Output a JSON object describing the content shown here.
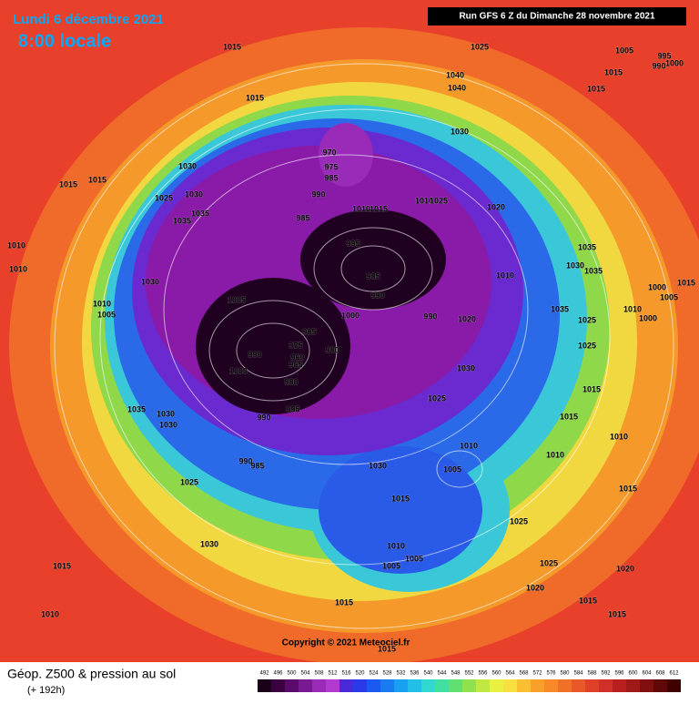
{
  "header": {
    "date": "Lundi 6 décembre 2021",
    "time": "8:00 locale",
    "run": "Run GFS 6 Z du Dimanche 28 novembre 2021"
  },
  "isobar_labels": [
    1015,
    1025,
    1005,
    1015,
    1015,
    995,
    990,
    1000,
    1040,
    1015,
    1040,
    1030,
    1030,
    1015,
    1015,
    1025,
    1030,
    1035,
    1035,
    970,
    975,
    985,
    990,
    985,
    1010,
    1015,
    1010,
    1025,
    1020,
    995,
    985,
    990,
    1010,
    1010,
    1030,
    1010,
    1035,
    1030,
    1035,
    1000,
    1005,
    1015,
    1010,
    1000,
    1035,
    1025,
    1025,
    1010,
    1005,
    1005,
    1000,
    990,
    1020,
    985,
    980,
    975,
    960,
    965,
    990,
    1000,
    980,
    1030,
    1025,
    1015,
    1015,
    1035,
    1030,
    1030,
    995,
    990,
    1030,
    1010,
    1005,
    1010,
    1010,
    1015,
    990,
    985,
    1025,
    1015,
    1025,
    1030,
    1010,
    1005,
    1005,
    1025,
    1020,
    1020,
    1015,
    1010,
    1015,
    1015,
    1015,
    1015
  ],
  "copyright": "Copyright © 2021 Meteociel.fr",
  "footer": {
    "title": "Géop. Z500 & pression au sol",
    "lead": "(+ 192h)"
  },
  "legend": {
    "values": [
      492,
      496,
      500,
      504,
      508,
      512,
      516,
      520,
      524,
      528,
      532,
      536,
      540,
      544,
      548,
      552,
      556,
      560,
      564,
      568,
      572,
      576,
      580,
      584,
      588,
      592,
      596,
      600,
      604,
      608,
      612
    ],
    "colors": [
      "#1a0018",
      "#3a0040",
      "#5a0a6a",
      "#7a1a92",
      "#9a2ab8",
      "#b23ad0",
      "#4a2ad8",
      "#2a3ae8",
      "#1a5af0",
      "#1a7af0",
      "#1aa0f0",
      "#20c0e8",
      "#30d8d0",
      "#40e0a0",
      "#60e070",
      "#90e050",
      "#c0e840",
      "#e8f040",
      "#f8e040",
      "#f8c030",
      "#f8a028",
      "#f88828",
      "#f07028",
      "#e85828",
      "#e04028",
      "#d03028",
      "#b82020",
      "#a01818",
      "#801010",
      "#600808",
      "#400000"
    ]
  }
}
